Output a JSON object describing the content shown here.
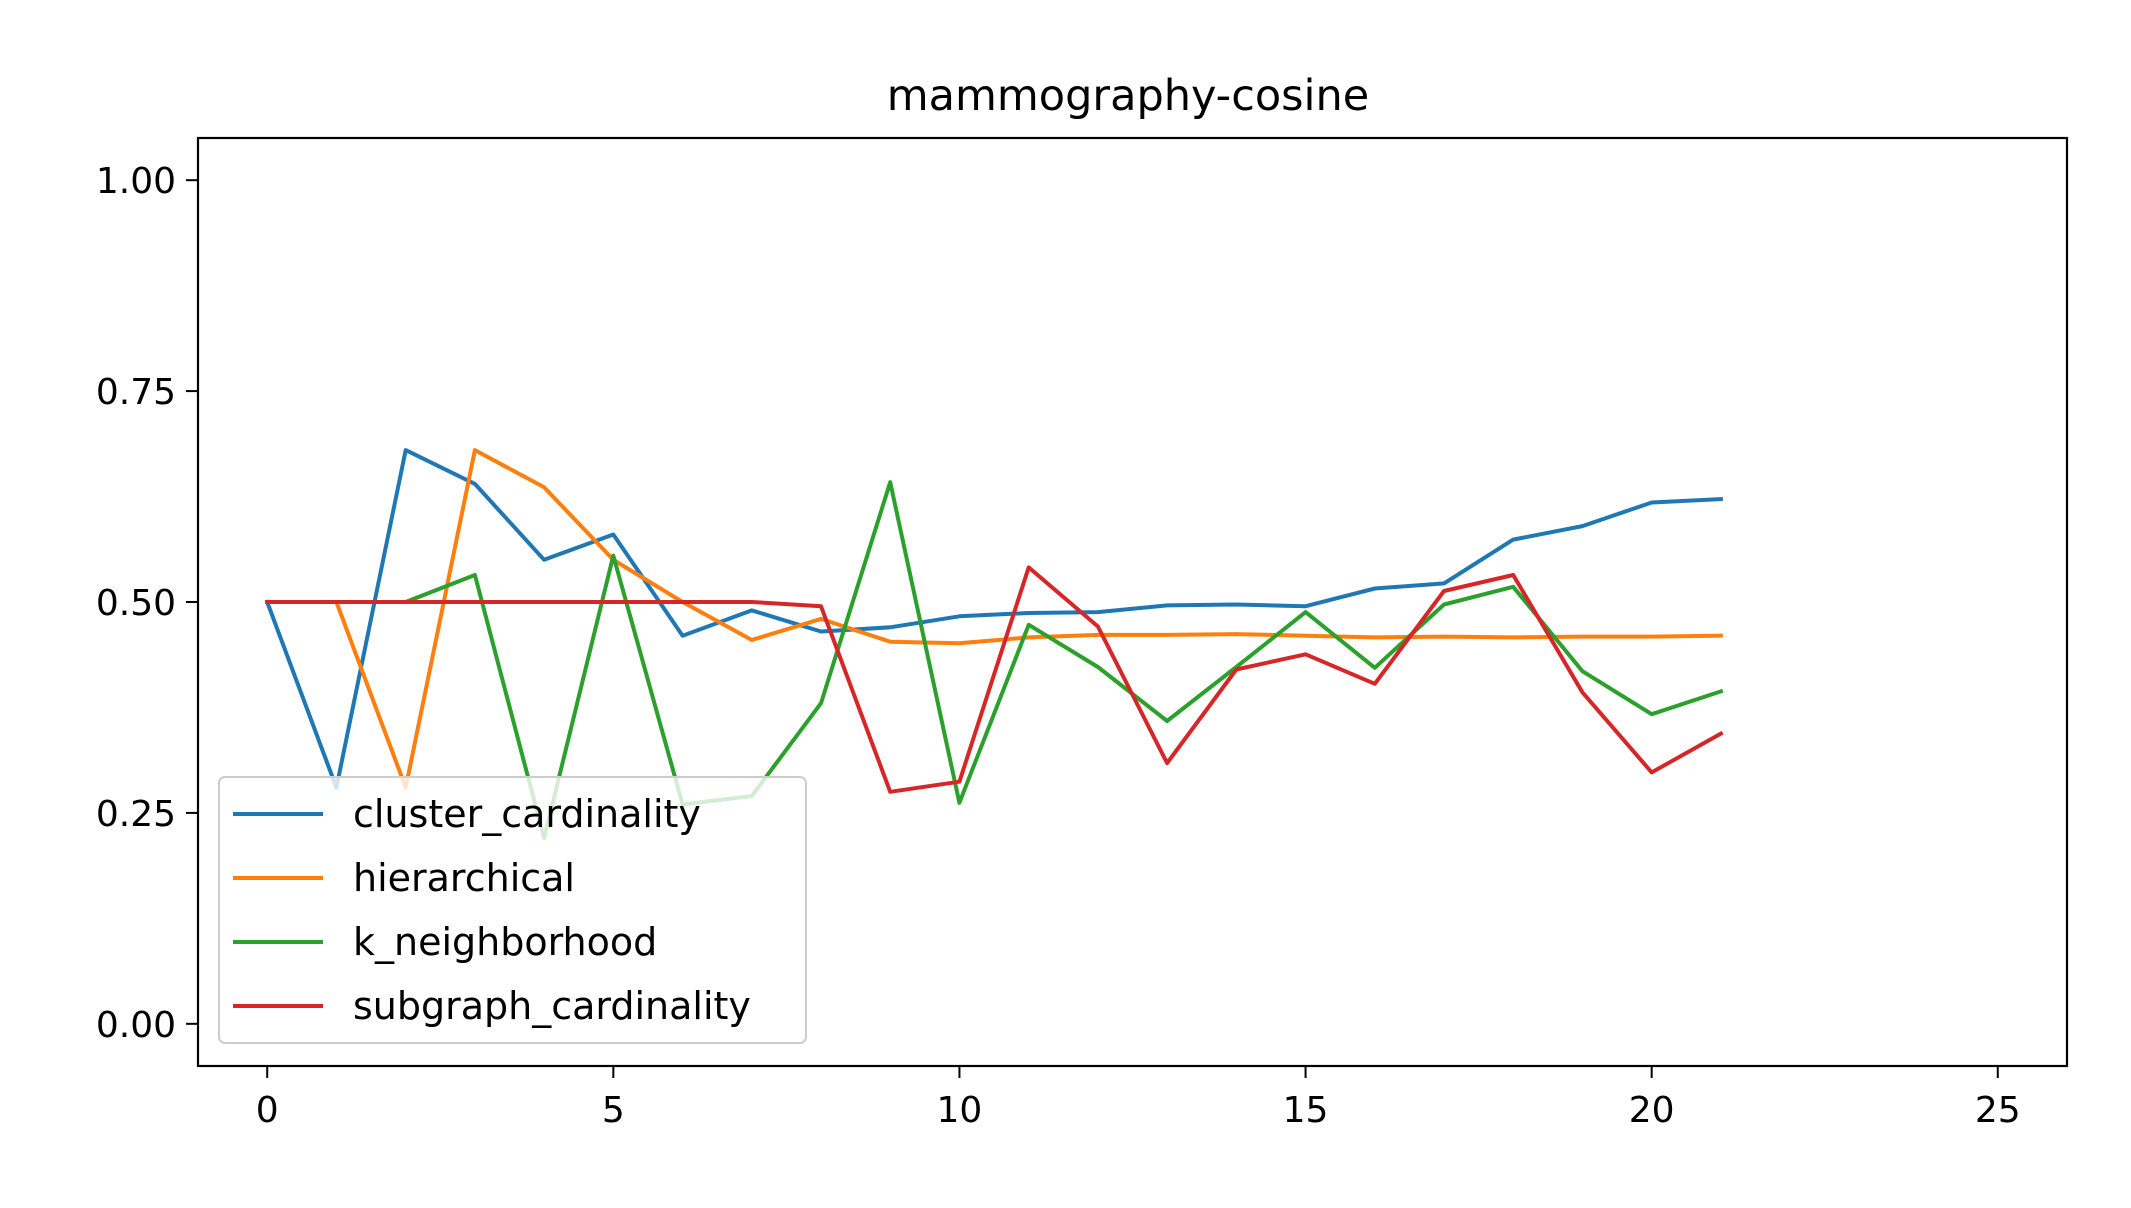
{
  "chart_data": {
    "type": "line",
    "title": "mammography-cosine",
    "xlabel": "",
    "ylabel": "",
    "xlim": [
      -1,
      26
    ],
    "ylim": [
      -0.05,
      1.05
    ],
    "xticks": [
      0,
      5,
      10,
      15,
      20,
      25
    ],
    "yticks": [
      0.0,
      0.25,
      0.5,
      0.75,
      1.0
    ],
    "xtick_labels": [
      "0",
      "5",
      "10",
      "15",
      "20",
      "25"
    ],
    "ytick_labels": [
      "0.00",
      "0.25",
      "0.50",
      "0.75",
      "1.00"
    ],
    "grid": false,
    "legend_position": "lower-left",
    "x": [
      0,
      1,
      2,
      3,
      4,
      5,
      6,
      7,
      8,
      9,
      10,
      11,
      12,
      13,
      14,
      15,
      16,
      17,
      18,
      19,
      20,
      21
    ],
    "series": [
      {
        "name": "cluster_cardinality",
        "color": "#1f77b4",
        "values": [
          0.5,
          0.28,
          0.68,
          0.64,
          0.55,
          0.58,
          0.46,
          0.49,
          0.465,
          0.47,
          0.483,
          0.487,
          0.488,
          0.496,
          0.497,
          0.495,
          0.516,
          0.522,
          0.574,
          0.59,
          0.618,
          0.622
        ]
      },
      {
        "name": "hierarchical",
        "color": "#ff7f0e",
        "values": [
          0.5,
          0.5,
          0.28,
          0.68,
          0.636,
          0.55,
          0.5,
          0.455,
          0.48,
          0.453,
          0.451,
          0.458,
          0.461,
          0.461,
          0.462,
          0.46,
          0.458,
          0.459,
          0.458,
          0.459,
          0.459,
          0.46
        ]
      },
      {
        "name": "k_neighborhood",
        "color": "#2ca02c",
        "values": [
          0.5,
          0.5,
          0.5,
          0.532,
          0.22,
          0.555,
          0.26,
          0.27,
          0.38,
          0.642,
          0.262,
          0.473,
          0.423,
          0.359,
          0.423,
          0.488,
          0.422,
          0.497,
          0.518,
          0.418,
          0.367,
          0.394
        ]
      },
      {
        "name": "subgraph_cardinality",
        "color": "#d62728",
        "values": [
          0.5,
          0.5,
          0.5,
          0.5,
          0.5,
          0.5,
          0.5,
          0.5,
          0.495,
          0.275,
          0.287,
          0.541,
          0.471,
          0.309,
          0.42,
          0.438,
          0.403,
          0.513,
          0.532,
          0.393,
          0.298,
          0.344
        ]
      }
    ]
  }
}
